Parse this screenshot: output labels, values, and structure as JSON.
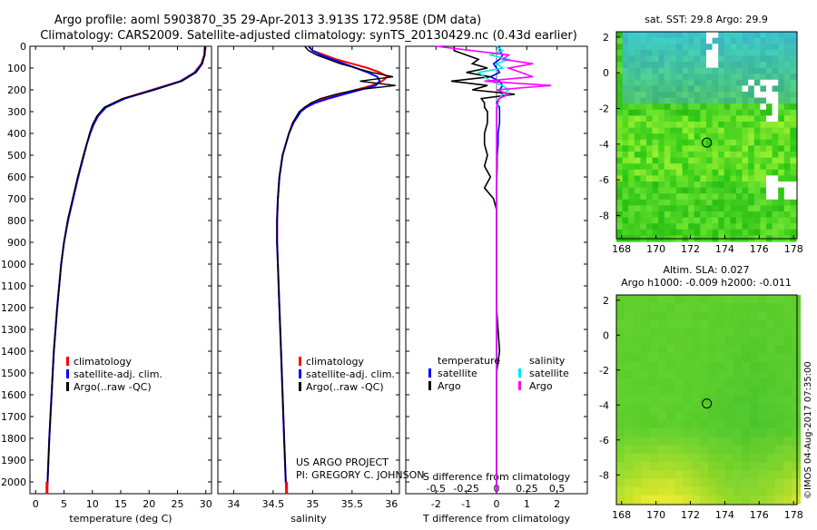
{
  "title_line1": "Argo profile: aoml 5903870_35 29-Apr-2013 3.913S 172.958E (DM data)",
  "title_line2": "Climatology: CARS2009. Satellite-adjusted climatology: synTS_20130429.nc (0.43d earlier)",
  "depth_ticks": [
    0,
    100,
    200,
    300,
    400,
    500,
    600,
    700,
    800,
    900,
    1000,
    1100,
    1200,
    1300,
    1400,
    1500,
    1600,
    1700,
    1800,
    1900,
    2000
  ],
  "colors": {
    "climatology": "#ff0000",
    "satellite": "#0000ff",
    "argo": "#000000",
    "sat_salinity": "#00e5ee",
    "argo_salinity": "#ff00ff"
  },
  "chart_data": [
    {
      "type": "line",
      "id": "temperature",
      "xlabel": "temperature (deg C)",
      "xlim": [
        -1,
        31
      ],
      "ylim": [
        2060,
        0
      ],
      "xticks": [
        0,
        5,
        10,
        15,
        20,
        25,
        30
      ],
      "legend": [
        "climatology",
        "satellite-adj. clim.",
        "Argo(..raw -QC)"
      ],
      "depth": [
        0,
        40,
        80,
        120,
        160,
        200,
        240,
        280,
        320,
        360,
        400,
        450,
        500,
        600,
        700,
        800,
        900,
        1000,
        1200,
        1400,
        1600,
        1800,
        2000,
        2050
      ],
      "series": [
        {
          "name": "climatology",
          "values": [
            29.8,
            29.7,
            29.2,
            28.0,
            25.5,
            20.5,
            15.5,
            12.3,
            11.0,
            10.2,
            9.6,
            9.0,
            8.5,
            7.5,
            6.6,
            5.7,
            5.0,
            4.5,
            3.8,
            3.2,
            2.8,
            2.4,
            2.1,
            2.0
          ]
        },
        {
          "name": "satellite",
          "values": [
            29.9,
            29.8,
            29.3,
            28.1,
            25.6,
            20.8,
            15.7,
            12.4,
            11.0,
            10.2,
            9.6,
            9.0,
            8.5,
            7.5,
            6.6,
            5.7,
            5.0,
            4.5,
            3.8,
            3.2,
            2.8,
            2.4,
            2.1,
            2.0
          ]
        },
        {
          "name": "argo",
          "values": [
            29.9,
            29.8,
            29.4,
            28.3,
            25.8,
            21.0,
            15.3,
            12.1,
            10.8,
            10.0,
            9.5,
            9.0,
            8.4,
            7.4,
            6.5,
            5.6,
            5.0,
            4.5,
            3.8,
            3.2,
            2.8,
            2.4,
            2.1,
            2.0
          ]
        }
      ]
    },
    {
      "type": "line",
      "id": "salinity",
      "xlabel": "salinity",
      "xlim": [
        33.8,
        36.1
      ],
      "ylim": [
        2060,
        0
      ],
      "xticks": [
        34,
        34.5,
        35,
        35.5,
        36
      ],
      "xticklabels": [
        "34",
        "34.5",
        "35",
        "35.5",
        "36"
      ],
      "legend": [
        "climatology",
        "satellite-adj. clim.",
        "Argo(..raw -QC)"
      ],
      "depth": [
        0,
        20,
        40,
        60,
        80,
        100,
        120,
        140,
        160,
        180,
        200,
        220,
        240,
        260,
        280,
        300,
        350,
        400,
        450,
        500,
        600,
        700,
        800,
        900,
        1000,
        1200,
        1400,
        1600,
        1800,
        2000,
        2050
      ],
      "series": [
        {
          "name": "climatology",
          "values": [
            34.95,
            35.0,
            35.15,
            35.3,
            35.5,
            35.7,
            35.85,
            35.95,
            35.88,
            35.75,
            35.55,
            35.35,
            35.15,
            35.0,
            34.9,
            34.84,
            34.75,
            34.7,
            34.66,
            34.62,
            34.58,
            34.56,
            34.55,
            34.55,
            34.56,
            34.58,
            34.6,
            34.62,
            34.64,
            34.66,
            34.67
          ]
        },
        {
          "name": "satellite",
          "values": [
            34.95,
            35.0,
            35.1,
            35.25,
            35.4,
            35.55,
            35.7,
            35.82,
            35.85,
            35.8,
            35.6,
            35.4,
            35.2,
            35.03,
            34.92,
            34.85,
            34.76,
            34.7,
            34.66,
            34.62,
            34.58,
            34.56,
            34.55,
            34.55,
            34.56,
            34.58,
            34.6,
            34.62,
            34.64,
            34.66,
            34.67
          ]
        },
        {
          "name": "argo",
          "values": [
            34.9,
            34.95,
            35.05,
            35.2,
            35.35,
            35.55,
            35.75,
            36.02,
            35.6,
            36.05,
            35.55,
            35.3,
            35.1,
            34.98,
            34.9,
            34.83,
            34.75,
            34.7,
            34.66,
            34.62,
            34.58,
            34.56,
            34.55,
            34.55,
            34.56,
            34.58,
            34.6,
            34.62,
            34.64,
            34.66,
            34.67
          ]
        }
      ]
    },
    {
      "type": "line",
      "id": "difference",
      "xlabel": "T difference from climatology",
      "xlabel2": "S difference from climatology",
      "xlim": [
        -3,
        3
      ],
      "ylim": [
        2060,
        0
      ],
      "xticks": [
        -2,
        -1,
        0,
        1,
        2
      ],
      "xticklabels": [
        "-2",
        "-1",
        "0",
        "1",
        "2"
      ],
      "sticks": [
        -0.5,
        -0.25,
        0,
        0.25,
        0.5
      ],
      "sticklabels": [
        "-0.5",
        "-0.25",
        "0",
        "0.25",
        "0.5"
      ],
      "legend_header_t": "temperature",
      "legend_header_s": "salinity",
      "legend_t": [
        "satellite",
        "Argo"
      ],
      "legend_s": [
        "satellite",
        "Argo"
      ],
      "depth": [
        0,
        20,
        40,
        60,
        80,
        100,
        120,
        140,
        160,
        180,
        200,
        220,
        240,
        260,
        280,
        300,
        350,
        400,
        450,
        500,
        550,
        600,
        650,
        700,
        750,
        800,
        900,
        1000,
        1200,
        1400,
        1500,
        1600,
        1800,
        2000,
        2050
      ],
      "series": [
        {
          "name": "T satellite",
          "values": [
            0.1,
            0.1,
            0.2,
            0.1,
            -0.1,
            0.0,
            0.1,
            -0.2,
            0.1,
            0.2,
            0.1,
            0.2,
            0.1,
            0.0,
            0.1,
            0.1,
            0.1,
            0.05,
            0.05,
            0.02,
            0.02,
            0.01,
            0.0,
            0.0,
            0.0,
            0.0,
            0.0,
            0.0,
            0.0,
            0.0,
            0.0,
            0.0,
            0.0,
            0.0,
            0.0
          ]
        },
        {
          "name": "T Argo",
          "values": [
            -1.4,
            -1.4,
            -1.0,
            -0.6,
            -0.8,
            -0.3,
            -1.0,
            -0.2,
            -1.5,
            -0.3,
            -0.8,
            0.6,
            -0.5,
            -0.4,
            -0.4,
            -0.3,
            -0.3,
            -0.4,
            -0.4,
            -0.3,
            -0.4,
            -0.2,
            -0.4,
            -0.1,
            0.0,
            0.0,
            0.0,
            0.0,
            0.0,
            0.1,
            0.0,
            0.0,
            0.0,
            0.0,
            0.0
          ]
        },
        {
          "name": "S satellite",
          "values": [
            0.0,
            0.05,
            -0.05,
            0.1,
            0.0,
            0.05,
            -0.15,
            -0.1,
            -0.05,
            0.05,
            0.1,
            0.05,
            0.02,
            0.01,
            0.01,
            0.0,
            0.0,
            0.0,
            0.0,
            0.0,
            0.0,
            0.0,
            0.0,
            0.0,
            0.0,
            0.0,
            0.0,
            0.0,
            0.0,
            0.0,
            0.0,
            0.0,
            0.0,
            0.0,
            0.0
          ]
        },
        {
          "name": "S Argo",
          "values": [
            -0.5,
            -0.2,
            0.1,
            0.05,
            0.3,
            0.1,
            0.2,
            0.3,
            -0.1,
            0.45,
            0.0,
            0.1,
            0.02,
            0.01,
            0.0,
            0.0,
            0.0,
            0.0,
            0.0,
            0.0,
            0.0,
            0.0,
            0.0,
            0.0,
            0.0,
            0.0,
            0.0,
            0.0,
            0.0,
            0.0,
            0.0,
            0.0,
            0.0,
            0.0,
            0.0
          ]
        }
      ]
    },
    {
      "type": "heatmap",
      "id": "sst-map",
      "title": "sat. SST: 29.8 Argo: 29.9",
      "xlim": [
        167.7,
        178.2
      ],
      "ylim": [
        -9.3,
        2.3
      ],
      "xticks": [
        168,
        170,
        172,
        174,
        176,
        178
      ],
      "yticks": [
        2,
        0,
        -2,
        -4,
        -6,
        -8
      ],
      "marker": {
        "lon": 172.958,
        "lat": -3.913
      }
    },
    {
      "type": "heatmap",
      "id": "sla-map",
      "title": "Altim. SLA: 0.027",
      "subtitle": "Argo h1000: -0.009 h2000: -0.011",
      "xlim": [
        167.7,
        178.2
      ],
      "ylim": [
        -9.7,
        2.3
      ],
      "xticks": [
        168,
        170,
        172,
        174,
        176,
        178
      ],
      "yticks": [
        2,
        0,
        -2,
        -4,
        -6,
        -8
      ],
      "marker": {
        "lon": 172.958,
        "lat": -3.913
      }
    }
  ],
  "footer_project": "US ARGO PROJECT",
  "footer_pi": "PI: GREGORY C. JOHNSON",
  "imos_stamp": "©IMOS 04-Aug-2017 07:35:00"
}
